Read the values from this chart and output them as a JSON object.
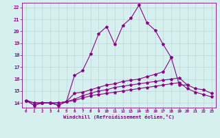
{
  "xlabel": "Windchill (Refroidissement éolien,°C)",
  "xlim": [
    -0.5,
    23.5
  ],
  "ylim": [
    13.6,
    22.4
  ],
  "xticks": [
    0,
    1,
    2,
    3,
    4,
    5,
    6,
    7,
    8,
    9,
    10,
    11,
    12,
    13,
    14,
    15,
    16,
    17,
    18,
    19,
    20,
    21,
    22,
    23
  ],
  "yticks": [
    14,
    15,
    16,
    17,
    18,
    19,
    20,
    21,
    22
  ],
  "background_color": "#d6f0ef",
  "line_color": "#880088",
  "grid_color": "#b8d8d4",
  "line1_x": [
    0,
    1,
    2,
    3,
    4,
    5,
    6,
    7,
    8,
    9,
    10,
    11,
    12,
    13,
    14,
    15,
    16,
    17,
    18
  ],
  "line1_y": [
    14.2,
    13.8,
    14.0,
    14.0,
    13.8,
    14.1,
    16.3,
    16.7,
    18.1,
    19.8,
    20.4,
    18.9,
    20.5,
    21.1,
    22.2,
    20.7,
    20.1,
    18.9,
    17.8
  ],
  "line2_x": [
    0,
    1,
    2,
    3,
    4,
    5,
    6,
    7,
    8,
    9,
    10,
    11,
    12,
    13,
    14,
    15,
    16,
    17,
    18,
    19,
    20
  ],
  "line2_y": [
    14.2,
    13.8,
    14.0,
    14.0,
    13.8,
    14.1,
    14.8,
    14.9,
    15.1,
    15.3,
    15.5,
    15.6,
    15.8,
    15.9,
    16.0,
    16.2,
    16.4,
    16.6,
    17.8,
    15.5,
    15.5
  ],
  "line3_x": [
    0,
    1,
    2,
    3,
    4,
    5,
    6,
    7,
    8,
    9,
    10,
    11,
    12,
    13,
    14,
    15,
    16,
    17,
    18,
    19,
    20,
    21,
    22,
    23
  ],
  "line3_y": [
    14.2,
    14.0,
    14.0,
    14.0,
    14.0,
    14.1,
    14.3,
    14.6,
    14.8,
    15.0,
    15.1,
    15.3,
    15.4,
    15.5,
    15.6,
    15.7,
    15.8,
    15.9,
    16.0,
    16.1,
    15.5,
    15.2,
    15.1,
    14.8
  ],
  "line4_x": [
    0,
    1,
    2,
    3,
    4,
    5,
    6,
    7,
    8,
    9,
    10,
    11,
    12,
    13,
    14,
    15,
    16,
    17,
    18,
    19,
    20,
    21,
    22,
    23
  ],
  "line4_y": [
    14.2,
    14.0,
    14.0,
    14.0,
    14.0,
    14.1,
    14.2,
    14.4,
    14.6,
    14.7,
    14.8,
    14.9,
    15.0,
    15.1,
    15.2,
    15.3,
    15.4,
    15.5,
    15.6,
    15.7,
    15.2,
    14.9,
    14.7,
    14.5
  ]
}
